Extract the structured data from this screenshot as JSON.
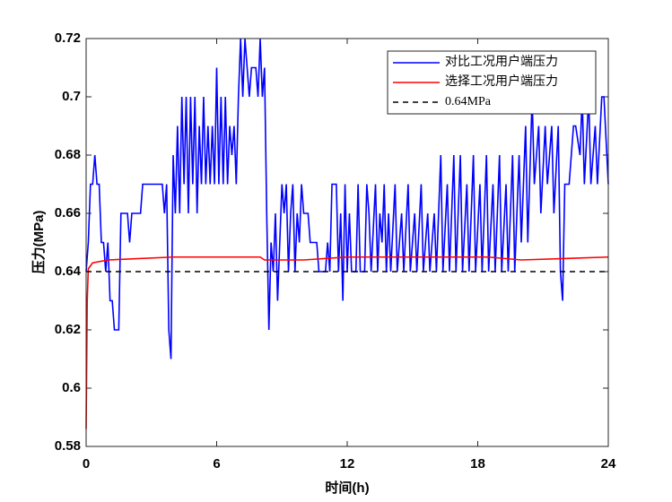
{
  "chart_data": {
    "type": "line",
    "xlabel": "时间(h)",
    "ylabel": "压力(MPa)",
    "xlim": [
      0,
      24
    ],
    "xticks": [
      0,
      6,
      12,
      18,
      24
    ],
    "ylim": [
      0.58,
      0.72
    ],
    "yticks": [
      0.58,
      0.6,
      0.62,
      0.64,
      0.66,
      0.68,
      0.7,
      0.72
    ],
    "legend": "upper-right",
    "series": [
      {
        "name": "对比工况用户端压力",
        "color": "#0000ff",
        "dash": false,
        "x": [
          0,
          0.1,
          0.2,
          0.3,
          0.4,
          0.5,
          0.6,
          0.7,
          0.8,
          0.9,
          1.0,
          1.1,
          1.2,
          1.3,
          1.5,
          1.6,
          1.8,
          1.9,
          2.0,
          2.1,
          2.5,
          2.6,
          3.5,
          3.6,
          3.7,
          3.8,
          3.9,
          4.0,
          4.1,
          4.2,
          4.3,
          4.4,
          4.5,
          4.6,
          4.7,
          4.8,
          4.9,
          5.0,
          5.1,
          5.2,
          5.3,
          5.4,
          5.5,
          5.6,
          5.7,
          5.8,
          5.9,
          6.0,
          6.1,
          6.2,
          6.3,
          6.4,
          6.5,
          6.6,
          6.7,
          6.8,
          6.9,
          7.0,
          7.1,
          7.2,
          7.3,
          7.4,
          7.5,
          7.6,
          7.8,
          7.9,
          8.0,
          8.1,
          8.2,
          8.3,
          8.4,
          8.5,
          8.6,
          8.7,
          8.8,
          8.9,
          9.0,
          9.1,
          9.2,
          9.3,
          9.4,
          9.5,
          9.6,
          9.7,
          9.8,
          9.9,
          10.0,
          10.2,
          10.3,
          10.6,
          10.7,
          11.0,
          11.1,
          11.2,
          11.3,
          11.5,
          11.6,
          11.7,
          11.8,
          11.9,
          12.0,
          12.1,
          12.2,
          12.4,
          12.5,
          12.6,
          12.8,
          12.9,
          13.0,
          13.1,
          13.3,
          13.4,
          13.5,
          13.6,
          13.7,
          13.8,
          13.9,
          14.0,
          14.2,
          14.3,
          14.5,
          14.6,
          14.8,
          14.9,
          15.1,
          15.2,
          15.4,
          15.5,
          15.7,
          15.8,
          16.0,
          16.1,
          16.3,
          16.4,
          16.6,
          16.7,
          16.9,
          17.0,
          17.2,
          17.3,
          17.5,
          17.6,
          17.8,
          17.9,
          18.1,
          18.2,
          18.4,
          18.5,
          18.7,
          18.8,
          19.0,
          19.1,
          19.3,
          19.4,
          19.6,
          19.7,
          19.9,
          20.0,
          20.2,
          20.3,
          20.5,
          20.6,
          20.8,
          20.9,
          21.1,
          21.2,
          21.4,
          21.5,
          21.7,
          21.8,
          21.9,
          22.0,
          22.2,
          22.4,
          22.5,
          22.7,
          22.8,
          22.9,
          23.1,
          23.2,
          23.4,
          23.5,
          23.7,
          23.8,
          24.0
        ],
        "values": [
          0.64,
          0.65,
          0.67,
          0.67,
          0.68,
          0.67,
          0.67,
          0.65,
          0.65,
          0.64,
          0.65,
          0.63,
          0.63,
          0.62,
          0.62,
          0.66,
          0.66,
          0.66,
          0.65,
          0.66,
          0.66,
          0.67,
          0.67,
          0.66,
          0.67,
          0.62,
          0.61,
          0.68,
          0.66,
          0.69,
          0.66,
          0.7,
          0.67,
          0.7,
          0.66,
          0.7,
          0.67,
          0.7,
          0.66,
          0.69,
          0.67,
          0.7,
          0.67,
          0.69,
          0.67,
          0.69,
          0.67,
          0.71,
          0.67,
          0.7,
          0.67,
          0.7,
          0.67,
          0.69,
          0.68,
          0.69,
          0.67,
          0.7,
          0.72,
          0.7,
          0.72,
          0.71,
          0.7,
          0.71,
          0.71,
          0.7,
          0.72,
          0.7,
          0.71,
          0.66,
          0.62,
          0.65,
          0.64,
          0.66,
          0.63,
          0.65,
          0.67,
          0.66,
          0.67,
          0.64,
          0.66,
          0.67,
          0.64,
          0.66,
          0.65,
          0.67,
          0.66,
          0.66,
          0.65,
          0.65,
          0.64,
          0.64,
          0.65,
          0.64,
          0.67,
          0.67,
          0.64,
          0.66,
          0.63,
          0.67,
          0.64,
          0.66,
          0.64,
          0.64,
          0.67,
          0.64,
          0.64,
          0.67,
          0.66,
          0.64,
          0.67,
          0.64,
          0.66,
          0.65,
          0.67,
          0.64,
          0.66,
          0.64,
          0.67,
          0.64,
          0.66,
          0.64,
          0.67,
          0.64,
          0.66,
          0.64,
          0.67,
          0.64,
          0.66,
          0.64,
          0.66,
          0.64,
          0.68,
          0.64,
          0.67,
          0.64,
          0.68,
          0.64,
          0.68,
          0.64,
          0.67,
          0.64,
          0.68,
          0.64,
          0.67,
          0.64,
          0.68,
          0.64,
          0.67,
          0.64,
          0.68,
          0.64,
          0.67,
          0.64,
          0.68,
          0.64,
          0.68,
          0.65,
          0.69,
          0.65,
          0.7,
          0.67,
          0.69,
          0.66,
          0.69,
          0.67,
          0.69,
          0.66,
          0.69,
          0.64,
          0.63,
          0.67,
          0.67,
          0.69,
          0.69,
          0.68,
          0.7,
          0.67,
          0.7,
          0.67,
          0.69,
          0.67,
          0.7,
          0.7,
          0.67
        ]
      },
      {
        "name": "选择工况用户端压力",
        "color": "#ff0000",
        "dash": false,
        "x": [
          0,
          0.05,
          0.1,
          0.3,
          1,
          4,
          8,
          8.2,
          10,
          12,
          16,
          18,
          18.5,
          20,
          24
        ],
        "values": [
          0.586,
          0.63,
          0.641,
          0.643,
          0.644,
          0.645,
          0.645,
          0.644,
          0.644,
          0.645,
          0.645,
          0.645,
          0.645,
          0.644,
          0.645
        ]
      },
      {
        "name": "0.64MPa",
        "color": "#000000",
        "dash": true,
        "x": [
          0,
          24
        ],
        "values": [
          0.64,
          0.64
        ]
      }
    ]
  }
}
